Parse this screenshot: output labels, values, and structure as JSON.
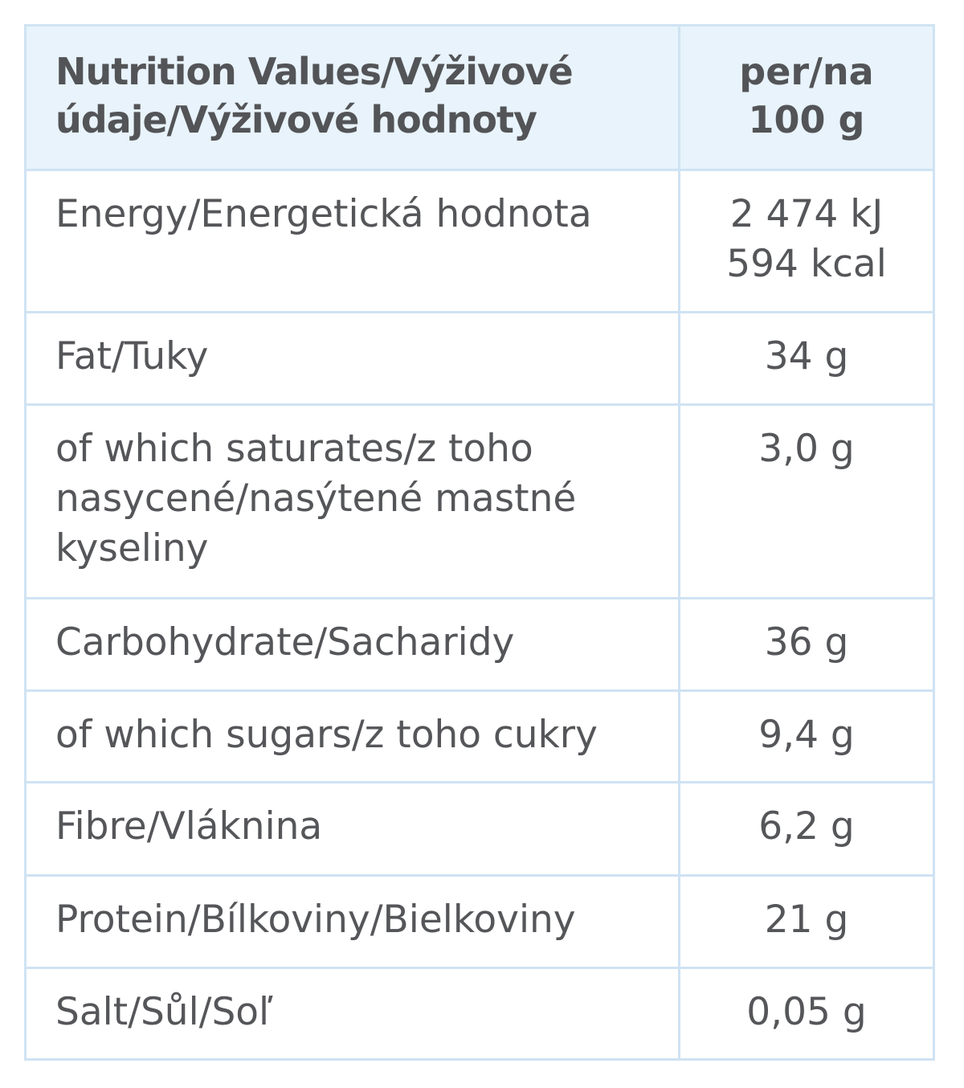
{
  "table": {
    "header": {
      "name_line1": "Nutrition Values/Výživové",
      "name_line2": "údaje/Výživové hodnoty",
      "value_line1": "per/na",
      "value_line2": "100 g"
    },
    "rows": [
      {
        "name": [
          "Energy/Energetická hodnota"
        ],
        "value": [
          "2 474 kJ",
          "594 kcal"
        ]
      },
      {
        "name": [
          "Fat/Tuky"
        ],
        "value": [
          "34 g"
        ]
      },
      {
        "name": [
          "of which saturates/z toho",
          "nasycené/nasýtené mastné",
          "kyseliny"
        ],
        "value": [
          "3,0 g"
        ]
      },
      {
        "name": [
          "Carbohydrate/Sacharidy"
        ],
        "value": [
          "36 g"
        ]
      },
      {
        "name": [
          "of which sugars/z toho cukry"
        ],
        "value": [
          "9,4 g"
        ]
      },
      {
        "name": [
          "Fibre/Vláknina"
        ],
        "value": [
          "6,2 g"
        ]
      },
      {
        "name": [
          "Protein/Bílkoviny/Bielkoviny"
        ],
        "value": [
          "21 g"
        ]
      },
      {
        "name": [
          "Salt/Sůl/Soľ"
        ],
        "value": [
          "0,05 g"
        ]
      }
    ]
  }
}
